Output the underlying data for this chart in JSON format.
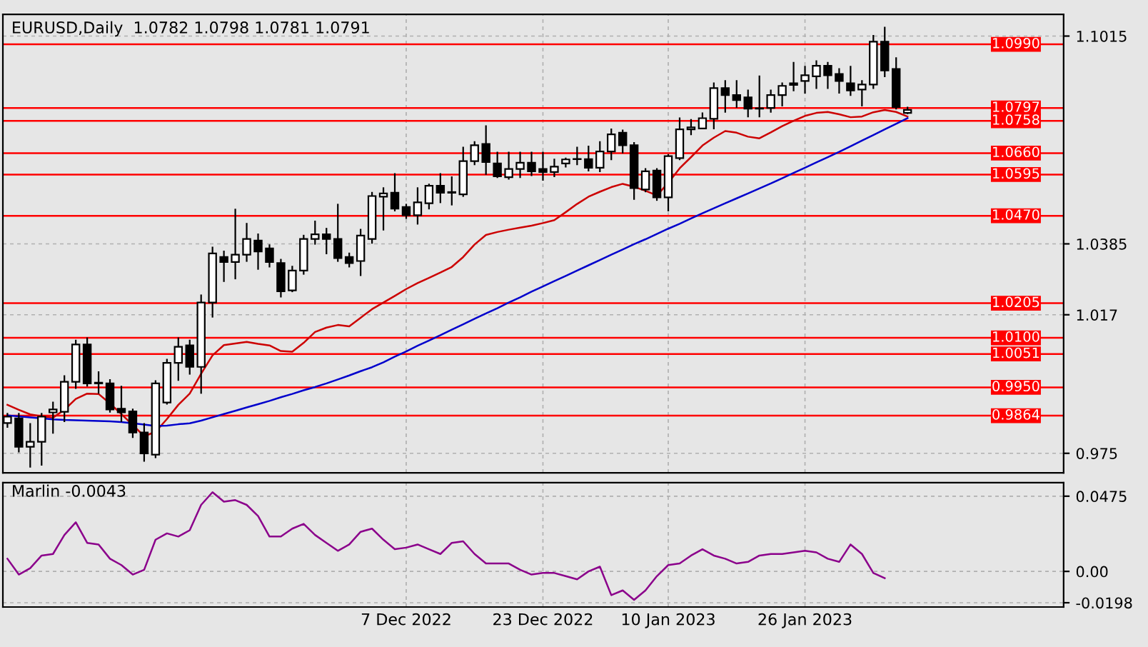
{
  "chart_data": [
    {
      "type": "candlestick",
      "title": "EURUSD,Daily  1.0782 1.0798 1.0781 1.0791",
      "categories": [
        null,
        null,
        null,
        null,
        null,
        null,
        null,
        null,
        null,
        null,
        null,
        null,
        null,
        null,
        null,
        null,
        null,
        null,
        null,
        null,
        null,
        null,
        null,
        null,
        null,
        null,
        null,
        null,
        null,
        null,
        null,
        null,
        null,
        null,
        null,
        null,
        null,
        null,
        null,
        null,
        null,
        null,
        null,
        null,
        null,
        null,
        null,
        null,
        null,
        null,
        null,
        null,
        null,
        null,
        null,
        null,
        null,
        null,
        null,
        null,
        null,
        null,
        null,
        null,
        null,
        null,
        null,
        null,
        null,
        null,
        null,
        null,
        null,
        null,
        null,
        null,
        null,
        null,
        null,
        null
      ],
      "tick_labels": "y",
      "ohlc": [
        [
          0.9842,
          0.987,
          0.983,
          0.9861
        ],
        [
          0.9856,
          0.987,
          0.9755,
          0.977
        ],
        [
          0.977,
          0.9839,
          0.9709,
          0.9785
        ],
        [
          0.9785,
          0.987,
          0.9715,
          0.9861
        ],
        [
          0.9874,
          0.9904,
          0.9812,
          0.9883
        ],
        [
          0.9876,
          0.9984,
          0.9847,
          0.9967
        ],
        [
          0.9967,
          1.0092,
          0.9948,
          1.008
        ],
        [
          1.008,
          1.0099,
          0.9955,
          0.9962
        ],
        [
          0.9964,
          0.9996,
          0.9933,
          0.9962
        ],
        [
          0.9962,
          0.9972,
          0.9876,
          0.9883
        ],
        [
          0.9885,
          0.9952,
          0.9847,
          0.9874
        ],
        [
          0.9877,
          0.9883,
          0.9799,
          0.9813
        ],
        [
          0.9813,
          0.9839,
          0.9727,
          0.975
        ],
        [
          0.9746,
          0.9969,
          0.9738,
          0.9962
        ],
        [
          0.9904,
          1.0034,
          0.99,
          1.0024
        ],
        [
          1.0024,
          1.0099,
          0.9972,
          1.0073
        ],
        [
          1.0077,
          1.0092,
          0.9991,
          1.0012
        ],
        [
          1.0012,
          1.0229,
          0.9933,
          1.0207
        ],
        [
          1.0207,
          1.0374,
          1.0164,
          1.0356
        ],
        [
          1.0345,
          1.0362,
          1.0272,
          1.033
        ],
        [
          1.033,
          1.0489,
          1.028,
          1.0352
        ],
        [
          1.0352,
          1.0446,
          1.0333,
          1.04
        ],
        [
          1.0395,
          1.0414,
          1.0309,
          1.0362
        ],
        [
          1.0371,
          1.0381,
          1.0316,
          1.033
        ],
        [
          1.0327,
          1.0337,
          1.0225,
          1.0241
        ],
        [
          1.0244,
          1.0316,
          1.0241,
          1.0304
        ],
        [
          1.0304,
          1.041,
          1.0294,
          1.04
        ],
        [
          1.04,
          1.0453,
          1.0385,
          1.0414
        ],
        [
          1.0414,
          1.0431,
          1.0356,
          1.04
        ],
        [
          1.04,
          1.0504,
          1.0333,
          1.0342
        ],
        [
          1.0345,
          1.0356,
          1.0316,
          1.0327
        ],
        [
          1.0333,
          1.0428,
          1.029,
          1.041
        ],
        [
          1.04,
          1.054,
          1.0388,
          1.053
        ],
        [
          1.0528,
          1.0554,
          1.0428,
          1.0538
        ],
        [
          1.054,
          1.0597,
          1.0486,
          1.0492
        ],
        [
          1.0497,
          1.0504,
          1.0463,
          1.0472
        ],
        [
          1.0472,
          1.0554,
          1.0446,
          1.0511
        ],
        [
          1.0508,
          1.0565,
          1.0492,
          1.0561
        ],
        [
          1.0561,
          1.0597,
          1.0511,
          1.054
        ],
        [
          1.0542,
          1.0587,
          1.0504,
          1.054
        ],
        [
          1.0535,
          1.0677,
          1.053,
          1.0636
        ],
        [
          1.0636,
          1.0694,
          1.0626,
          1.0684
        ],
        [
          1.0688,
          1.0742,
          1.0597,
          1.0633
        ],
        [
          1.0629,
          1.0662,
          1.0587,
          1.059
        ],
        [
          1.0587,
          1.0662,
          1.0582,
          1.0612
        ],
        [
          1.0612,
          1.0662,
          1.0587,
          1.0631
        ],
        [
          1.0631,
          1.0662,
          1.0593,
          1.0605
        ],
        [
          1.0612,
          1.0662,
          1.0579,
          1.0603
        ],
        [
          1.0603,
          1.0641,
          1.059,
          1.0619
        ],
        [
          1.0629,
          1.0644,
          1.0619,
          1.0641
        ],
        [
          1.0642,
          1.0677,
          1.0626,
          1.0642
        ],
        [
          1.0642,
          1.068,
          1.0607,
          1.0616
        ],
        [
          1.0616,
          1.0694,
          1.0605,
          1.0665
        ],
        [
          1.0665,
          1.0732,
          1.0641,
          1.0717
        ],
        [
          1.0722,
          1.0729,
          1.0662,
          1.0684
        ],
        [
          1.0684,
          1.0691,
          1.0521,
          1.0554
        ],
        [
          1.055,
          1.0612,
          1.0544,
          1.0605
        ],
        [
          1.0607,
          1.0612,
          1.0518,
          1.0526
        ],
        [
          1.0526,
          1.0655,
          1.0486,
          1.0651
        ],
        [
          1.0645,
          1.0766,
          1.0641,
          1.0732
        ],
        [
          1.0732,
          1.0761,
          1.0717,
          1.0738
        ],
        [
          1.0735,
          1.0781,
          1.0735,
          1.0766
        ],
        [
          1.0764,
          1.0872,
          1.0735,
          1.0857
        ],
        [
          1.0857,
          1.0879,
          1.0785,
          1.0836
        ],
        [
          1.0836,
          1.0879,
          1.08,
          1.0821
        ],
        [
          1.0829,
          1.085,
          1.0771,
          1.0795
        ],
        [
          1.0796,
          1.0893,
          1.0771,
          1.0795
        ],
        [
          1.0797,
          1.085,
          1.0785,
          1.0836
        ],
        [
          1.0836,
          1.0872,
          1.0804,
          1.0864
        ],
        [
          1.0867,
          1.0934,
          1.085,
          1.0872
        ],
        [
          1.0879,
          1.0922,
          1.0843,
          1.0896
        ],
        [
          1.0893,
          1.0939,
          1.0857,
          1.0925
        ],
        [
          1.0925,
          1.0934,
          1.0857,
          1.0896
        ],
        [
          1.09,
          1.0915,
          1.0843,
          1.0879
        ],
        [
          1.0872,
          1.0922,
          1.0836,
          1.085
        ],
        [
          1.0853,
          1.0879,
          1.0804,
          1.0868
        ],
        [
          1.0868,
          1.1016,
          1.0857,
          1.0998
        ],
        [
          1.0998,
          1.1041,
          1.0893,
          1.0911
        ],
        [
          1.0915,
          1.0948,
          1.0795,
          1.08
        ],
        [
          1.0782,
          1.0798,
          1.0781,
          1.0791
        ]
      ],
      "series": [
        {
          "type": "line",
          "color": "#cc0000",
          "values": [
            0.9897,
            0.9882,
            0.9868,
            0.9862,
            0.9858,
            0.9882,
            0.9915,
            0.9931,
            0.993,
            0.9901,
            0.9869,
            0.9836,
            0.9802,
            0.9815,
            0.9854,
            0.9897,
            0.9931,
            0.9991,
            1.0047,
            1.0078,
            1.0083,
            1.0088,
            1.0082,
            1.0077,
            1.006,
            1.0058,
            1.0085,
            1.0118,
            1.0131,
            1.0139,
            1.0135,
            1.0161,
            1.0187,
            1.0207,
            1.0227,
            1.0248,
            1.0266,
            1.0282,
            1.0298,
            1.0315,
            1.0345,
            1.0383,
            1.0412,
            1.0421,
            1.0428,
            1.0434,
            1.044,
            1.0448,
            1.0457,
            1.0481,
            1.0506,
            1.0528,
            1.0543,
            1.0557,
            1.0567,
            1.0558,
            1.0546,
            1.0532,
            1.057,
            1.0614,
            1.0648,
            1.0683,
            1.0707,
            1.0727,
            1.0722,
            1.071,
            1.0705,
            1.0723,
            1.0742,
            1.0758,
            1.0773,
            1.0782,
            1.0785,
            1.0778,
            1.0769,
            1.0771,
            1.0784,
            1.0791,
            1.0785,
            1.0771
          ]
        },
        {
          "type": "line",
          "color": "#0000cc",
          "values": [
            0.9865,
            0.9862,
            0.9859,
            0.9856,
            0.9853,
            0.9851,
            0.985,
            0.9849,
            0.9848,
            0.9847,
            0.9845,
            0.9841,
            0.9837,
            0.9833,
            0.9834,
            0.9838,
            0.9841,
            0.9849,
            0.9859,
            0.9869,
            0.9879,
            0.9889,
            0.9899,
            0.9909,
            0.992,
            0.993,
            0.9941,
            0.9951,
            0.9962,
            0.9974,
            0.9986,
            0.9999,
            1.0011,
            1.0026,
            1.0043,
            1.0059,
            1.0076,
            1.0092,
            1.0108,
            1.0125,
            1.0141,
            1.0158,
            1.0174,
            1.019,
            1.0207,
            1.0223,
            1.024,
            1.0256,
            1.0272,
            1.0288,
            1.0304,
            1.032,
            1.0336,
            1.0352,
            1.0368,
            1.0384,
            1.0399,
            1.0415,
            1.0431,
            1.0446,
            1.0462,
            1.0478,
            1.0493,
            1.0508,
            1.0523,
            1.0538,
            1.0553,
            1.0568,
            1.0584,
            1.06,
            1.0616,
            1.0632,
            1.0648,
            1.0664,
            1.0681,
            1.0698,
            1.0715,
            1.0732,
            1.0749,
            1.0766
          ]
        }
      ],
      "ylim": [
        0.9691,
        1.1081
      ],
      "yticks": [
        1.1015,
        1.0385,
        1.017,
        0.975
      ],
      "grid": true,
      "ref_lines": [
        {
          "axis": "y",
          "value": 1.099,
          "label": "1.0990",
          "color": "#ff0000"
        },
        {
          "axis": "y",
          "value": 1.0797,
          "label": "1.0797",
          "color": "#ff0000"
        },
        {
          "axis": "y",
          "value": 1.0758,
          "label": "1.0758",
          "color": "#ff0000"
        },
        {
          "axis": "y",
          "value": 1.066,
          "label": "1.0660",
          "color": "#ff0000"
        },
        {
          "axis": "y",
          "value": 1.0595,
          "label": "1.0595",
          "color": "#ff0000"
        },
        {
          "axis": "y",
          "value": 1.047,
          "label": "1.0470",
          "color": "#ff0000"
        },
        {
          "axis": "y",
          "value": 1.0205,
          "label": "1.0205",
          "color": "#ff0000"
        },
        {
          "axis": "y",
          "value": 1.01,
          "label": "1.0100",
          "color": "#ff0000"
        },
        {
          "axis": "y",
          "value": 1.0051,
          "label": "1.0051",
          "color": "#ff0000"
        },
        {
          "axis": "y",
          "value": 0.995,
          "label": "0.9950",
          "color": "#ff0000"
        },
        {
          "axis": "y",
          "value": 0.9864,
          "label": "0.9864",
          "color": "#ff0000"
        }
      ]
    },
    {
      "type": "line",
      "title": "Marlin -0.0043",
      "categories": [
        null,
        null,
        null,
        null,
        null,
        null,
        null,
        null,
        null,
        null,
        null,
        null,
        null,
        null,
        null,
        null,
        null,
        null,
        null,
        null,
        null,
        null,
        null,
        null,
        null,
        null,
        null,
        null,
        null,
        null,
        null,
        null,
        null,
        null,
        null,
        "7 Dec 2022",
        null,
        null,
        null,
        null,
        null,
        null,
        null,
        null,
        null,
        null,
        null,
        "23 Dec 2022",
        null,
        null,
        null,
        null,
        null,
        null,
        null,
        null,
        null,
        null,
        "10 Jan 2023",
        null,
        null,
        null,
        null,
        null,
        null,
        null,
        null,
        null,
        null,
        null,
        "26 Jan 2023",
        null,
        null,
        null,
        null,
        null,
        null,
        null,
        null,
        null
      ],
      "series": [
        {
          "color": "#8b008b",
          "values": [
            0.008,
            -0.002,
            0.002,
            0.01,
            0.011,
            0.023,
            0.031,
            0.018,
            0.017,
            0.008,
            0.004,
            -0.002,
            0.001,
            0.02,
            0.024,
            0.022,
            0.026,
            0.042,
            0.05,
            0.044,
            0.045,
            0.042,
            0.035,
            0.022,
            0.022,
            0.027,
            0.03,
            0.023,
            0.018,
            0.013,
            0.017,
            0.025,
            0.027,
            0.02,
            0.014,
            0.015,
            0.017,
            0.014,
            0.011,
            0.018,
            0.019,
            0.011,
            0.005,
            0.005,
            0.005,
            0.001,
            -0.002,
            -0.001,
            -0.001,
            -0.003,
            -0.005,
            0.0,
            0.003,
            -0.015,
            -0.012,
            -0.018,
            -0.012,
            -0.003,
            0.004,
            0.005,
            0.01,
            0.014,
            0.01,
            0.008,
            0.005,
            0.006,
            0.01,
            0.011,
            0.011,
            0.012,
            0.013,
            0.012,
            0.008,
            0.006,
            0.017,
            0.011,
            -0.001,
            -0.0043,
            null,
            null
          ]
        }
      ],
      "ylim": [
        -0.0225,
        0.056
      ],
      "yticks": [
        0.0475,
        {
          "value": 0,
          "label": "0.00"
        },
        -0.0198
      ],
      "grid": true
    }
  ]
}
